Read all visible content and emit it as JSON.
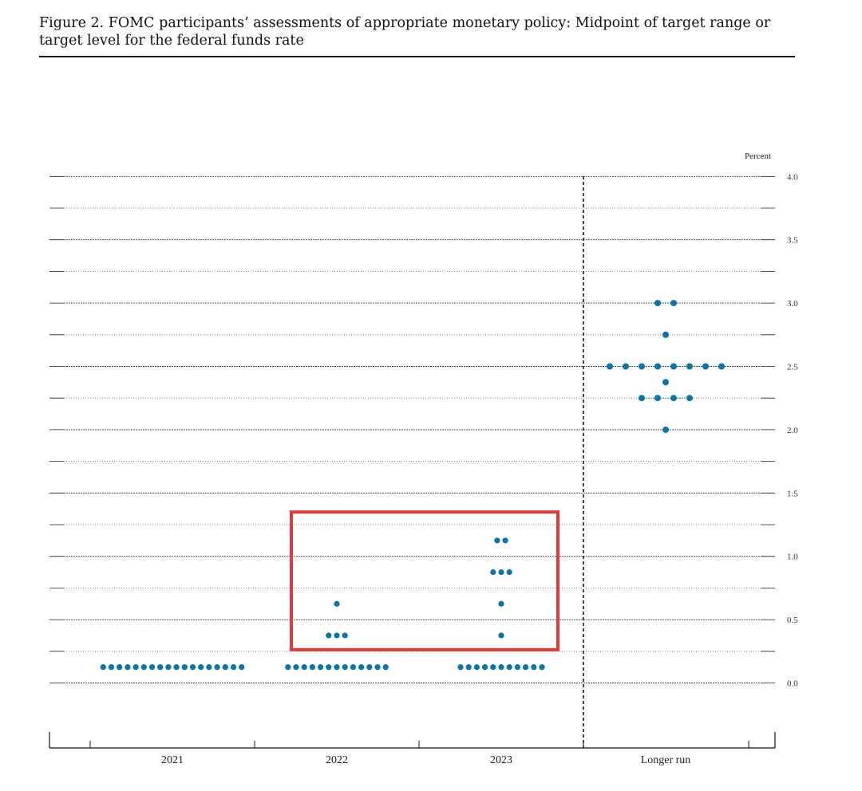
{
  "figure": {
    "title": "Figure 2.  FOMC participants’ assessments of appropriate monetary policy: Midpoint of target range or target level for the federal funds rate"
  },
  "chart_data": {
    "type": "scatter",
    "title": "",
    "xlabel": "",
    "ylabel": "Percent",
    "ylim": [
      -0.4,
      4.0
    ],
    "categories": [
      "2021",
      "2022",
      "2023",
      "Longer run"
    ],
    "y_ticks": [
      "0.0",
      "0.5",
      "1.0",
      "1.5",
      "2.0",
      "2.5",
      "3.0",
      "3.5",
      "4.0"
    ],
    "grid": true,
    "dot_color": "#0a76a8",
    "dots": [
      {
        "category": "2021",
        "rate": 0.125,
        "count": 18
      },
      {
        "category": "2022",
        "rate": 0.125,
        "count": 13
      },
      {
        "category": "2022",
        "rate": 0.375,
        "count": 3
      },
      {
        "category": "2022",
        "rate": 0.625,
        "count": 1
      },
      {
        "category": "2023",
        "rate": 0.125,
        "count": 11
      },
      {
        "category": "2023",
        "rate": 0.375,
        "count": 1
      },
      {
        "category": "2023",
        "rate": 0.625,
        "count": 1
      },
      {
        "category": "2023",
        "rate": 0.875,
        "count": 3
      },
      {
        "category": "2023",
        "rate": 1.125,
        "count": 2
      },
      {
        "category": "Longer run",
        "rate": 2.0,
        "count": 1
      },
      {
        "category": "Longer run",
        "rate": 2.25,
        "count": 4
      },
      {
        "category": "Longer run",
        "rate": 2.375,
        "count": 1
      },
      {
        "category": "Longer run",
        "rate": 2.5,
        "count": 8
      },
      {
        "category": "Longer run",
        "rate": 2.75,
        "count": 1
      },
      {
        "category": "Longer run",
        "rate": 3.0,
        "count": 2
      }
    ],
    "highlight": {
      "categories": [
        "2022",
        "2023"
      ],
      "color": "#e53935"
    }
  }
}
